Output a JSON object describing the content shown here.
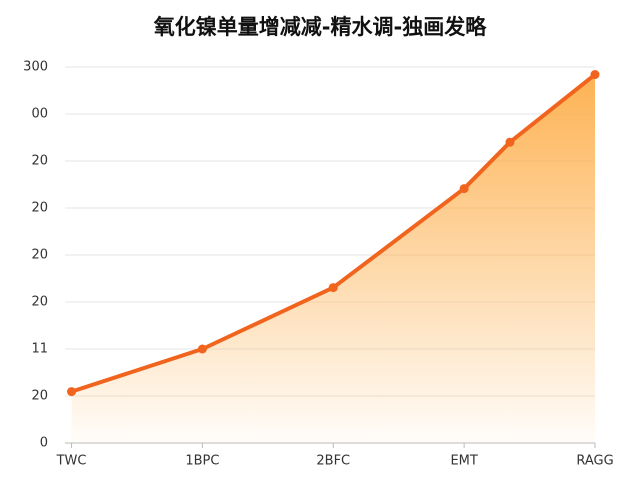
{
  "chart_data": {
    "type": "area-line",
    "title": "氧化镍单量增减减-精水调-独画发略",
    "x": [
      0,
      1,
      2,
      3,
      3.35,
      4
    ],
    "values": [
      41,
      75,
      124,
      203,
      240,
      294
    ],
    "color": "#f0641e",
    "xlim": [
      -0.05,
      4
    ],
    "xticks": [
      {
        "value": 0,
        "label": "TWC"
      },
      {
        "value": 1,
        "label": "1BPC"
      },
      {
        "value": 2,
        "label": "2BFC"
      },
      {
        "value": 3,
        "label": "EMT"
      },
      {
        "value": 4,
        "label": "RAGG"
      }
    ],
    "ylim": [
      0,
      300
    ],
    "yticks": [
      0,
      {
        "value": 37.5,
        "label": "20"
      },
      {
        "value": 75,
        "label": "11"
      },
      {
        "value": 112.5,
        "label": "20"
      },
      {
        "value": 150,
        "label": "20"
      },
      {
        "value": 187.5,
        "label": "20"
      },
      {
        "value": 225,
        "label": "20"
      },
      {
        "value": 262.5,
        "label": "00"
      },
      300
    ],
    "grid": true
  }
}
